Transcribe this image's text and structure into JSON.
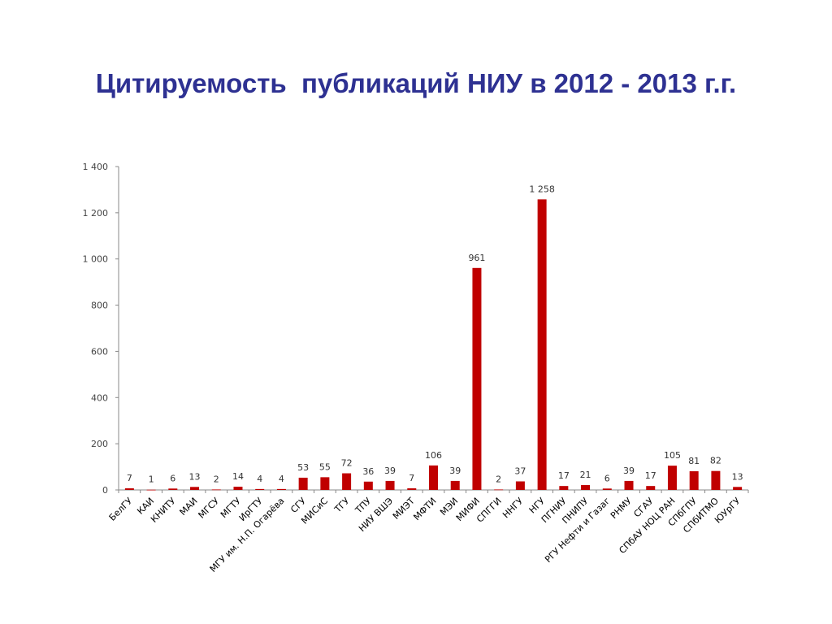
{
  "title": "Цитируемость  публикаций НИУ в 2012 - 2013 г.г.",
  "colors": {
    "title": "#2e3192",
    "bar": "#c00000",
    "axis": "#888888"
  },
  "chart_data": {
    "type": "bar",
    "title": "",
    "xlabel": "",
    "ylabel": "",
    "ylim": [
      0,
      1400
    ],
    "yticks": [
      0,
      200,
      400,
      600,
      800,
      1000,
      1200,
      1400
    ],
    "ytick_labels": [
      "0",
      "200",
      "400",
      "600",
      "800",
      "1 000",
      "1 200",
      "1 400"
    ],
    "grid": false,
    "legend": "none",
    "categories": [
      "БелГУ",
      "КАИ",
      "КНИТУ",
      "МАИ",
      "МГСУ",
      "МГТУ",
      "ИрГТУ",
      "МГУ им. Н.П. Огарёва",
      "СГУ",
      "МИСиС",
      "ТГУ",
      "ТПУ",
      "НИУ ВШЭ",
      "МИЭТ",
      "МФТИ",
      "МЭИ",
      "МИФИ",
      "СПГГИ",
      "ННГУ",
      "НГУ",
      "ПГНИУ",
      "ПНИПУ",
      "РГУ Нефти и Газаг",
      "РНМУ",
      "СГАУ",
      "СПбАУ НОЦ РАН",
      "СПбГПУ",
      "СПбИТМО",
      "ЮУрГУ"
    ],
    "values": [
      7,
      1,
      6,
      13,
      2,
      14,
      4,
      4,
      53,
      55,
      72,
      36,
      39,
      7,
      106,
      39,
      961,
      2,
      37,
      1258,
      17,
      21,
      6,
      39,
      17,
      105,
      81,
      82,
      13
    ],
    "value_labels": [
      "7",
      "1",
      "6",
      "13",
      "2",
      "14",
      "4",
      "4",
      "53",
      "55",
      "72",
      "36",
      "39",
      "7",
      "106",
      "39",
      "961",
      "2",
      "37",
      "1 258",
      "17",
      "21",
      "6",
      "39",
      "17",
      "105",
      "81",
      "82",
      "13"
    ]
  }
}
